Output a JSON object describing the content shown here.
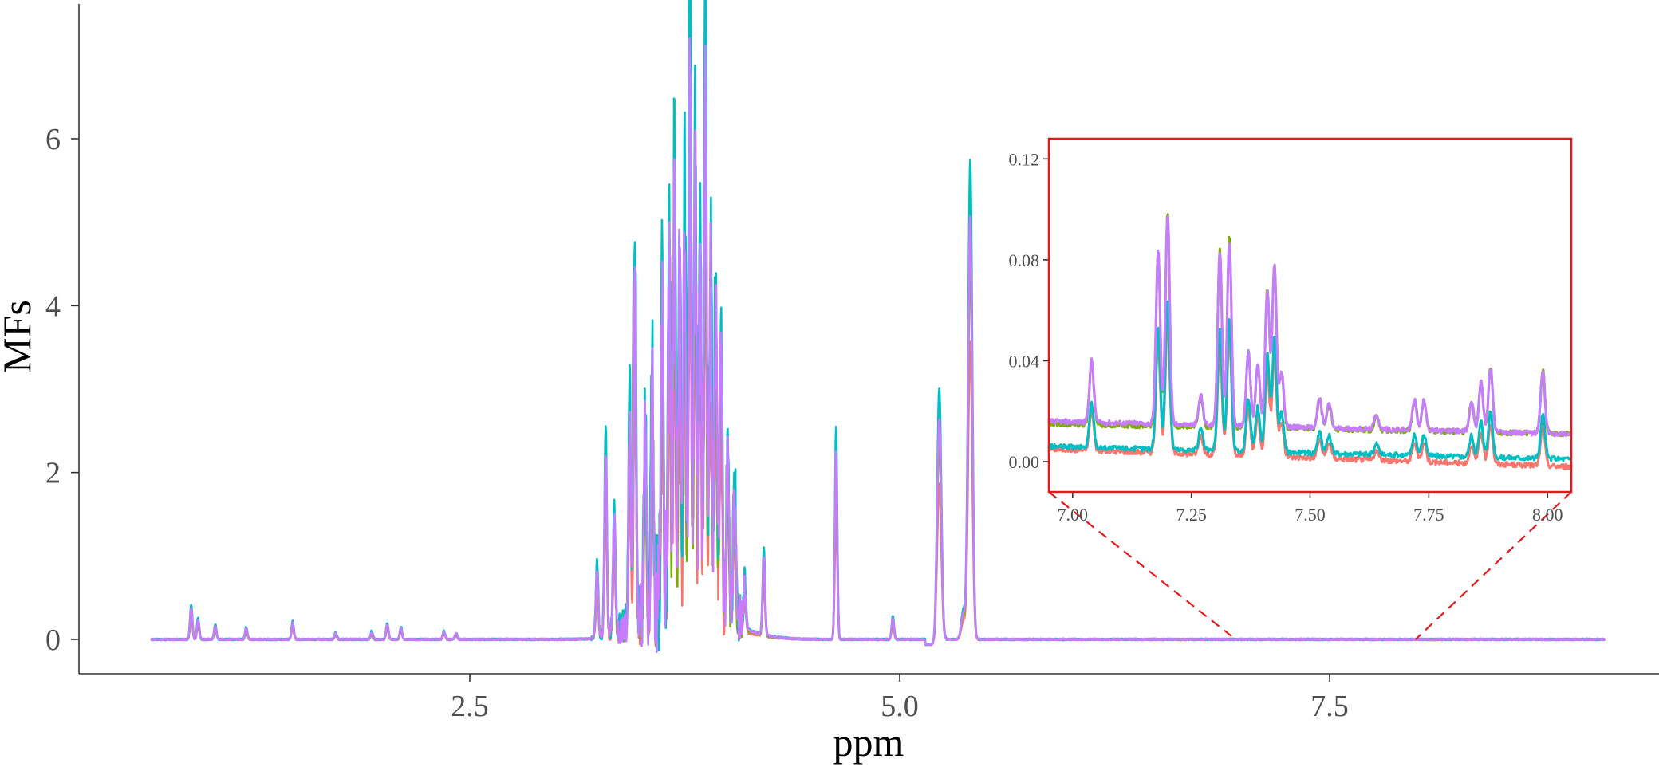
{
  "chart_data": {
    "type": "line",
    "xlabel": "ppm",
    "ylabel": "MFs",
    "xlim": [
      0.65,
      9.1
    ],
    "ylim": [
      -0.4,
      7.5
    ],
    "xticks": [
      {
        "value": 2.5,
        "label": "2.5"
      },
      {
        "value": 5.0,
        "label": "5.0"
      },
      {
        "value": 7.5,
        "label": "7.5"
      }
    ],
    "yticks": [
      {
        "value": 0,
        "label": "0"
      },
      {
        "value": 2,
        "label": "2"
      },
      {
        "value": 4,
        "label": "4"
      },
      {
        "value": 6,
        "label": "6"
      }
    ],
    "legend": "none",
    "grid": false,
    "series": [
      {
        "color": "#F8766D",
        "baseline": 0.0,
        "scale": 0.62
      },
      {
        "color": "#7CAE00",
        "baseline": 0.0,
        "scale": 0.8
      },
      {
        "color": "#00BFC4",
        "baseline": 0.0,
        "scale": 1.0
      },
      {
        "color": "#C77CFF",
        "baseline": 0.0,
        "scale": 0.88
      }
    ],
    "peaks": [
      {
        "x": 0.88,
        "h": 0.42
      },
      {
        "x": 0.92,
        "h": 0.26
      },
      {
        "x": 1.02,
        "h": 0.18
      },
      {
        "x": 1.2,
        "h": 0.15
      },
      {
        "x": 1.47,
        "h": 0.22
      },
      {
        "x": 1.72,
        "h": 0.08
      },
      {
        "x": 1.93,
        "h": 0.1
      },
      {
        "x": 2.02,
        "h": 0.2
      },
      {
        "x": 2.1,
        "h": 0.15
      },
      {
        "x": 2.35,
        "h": 0.1
      },
      {
        "x": 2.42,
        "h": 0.08
      },
      {
        "x": 3.24,
        "h": 0.92
      },
      {
        "x": 3.29,
        "h": 2.5
      },
      {
        "x": 3.34,
        "h": 1.6
      },
      {
        "x": 3.43,
        "h": 2.8
      },
      {
        "x": 3.46,
        "h": 4.85
      },
      {
        "x": 3.52,
        "h": 2.5
      },
      {
        "x": 3.56,
        "h": 3.2
      },
      {
        "x": 3.62,
        "h": 3.9
      },
      {
        "x": 3.66,
        "h": 4.6
      },
      {
        "x": 3.69,
        "h": 5.1
      },
      {
        "x": 3.72,
        "h": 4.2
      },
      {
        "x": 3.75,
        "h": 4.9
      },
      {
        "x": 3.78,
        "h": 7.2
      },
      {
        "x": 3.81,
        "h": 5.6
      },
      {
        "x": 3.84,
        "h": 4.4
      },
      {
        "x": 3.87,
        "h": 7.3
      },
      {
        "x": 3.9,
        "h": 4.6
      },
      {
        "x": 3.93,
        "h": 4.1
      },
      {
        "x": 3.96,
        "h": 3.8
      },
      {
        "x": 4.0,
        "h": 2.2
      },
      {
        "x": 4.04,
        "h": 1.8
      },
      {
        "x": 4.1,
        "h": 0.5
      },
      {
        "x": 4.21,
        "h": 1.05
      },
      {
        "x": 4.63,
        "h": 2.55
      },
      {
        "x": 4.96,
        "h": 0.28
      },
      {
        "x": 5.23,
        "h": 3.0
      },
      {
        "x": 5.37,
        "h": 0.35
      },
      {
        "x": 5.41,
        "h": 5.75
      }
    ],
    "inset": {
      "type": "line",
      "xlim": [
        6.95,
        8.05
      ],
      "ylim": [
        -0.012,
        0.128
      ],
      "xticks": [
        {
          "value": 7.0,
          "label": "7.00"
        },
        {
          "value": 7.25,
          "label": "7.25"
        },
        {
          "value": 7.5,
          "label": "7.50"
        },
        {
          "value": 7.75,
          "label": "7.75"
        },
        {
          "value": 8.0,
          "label": "8.00"
        }
      ],
      "yticks": [
        {
          "value": 0.0,
          "label": "0.00"
        },
        {
          "value": 0.04,
          "label": "0.04"
        },
        {
          "value": 0.08,
          "label": "0.08"
        },
        {
          "value": 0.12,
          "label": "0.12"
        }
      ],
      "zoom_range_ppm": [
        7.0,
        8.0
      ],
      "frame_color": "#E41A1C",
      "series": [
        {
          "color": "#F8766D",
          "baseline": 0.005,
          "drift": -0.007,
          "scale": 0.62
        },
        {
          "color": "#7CAE00",
          "baseline": 0.015,
          "drift": -0.004,
          "scale": 1.0
        },
        {
          "color": "#00BFC4",
          "baseline": 0.006,
          "drift": -0.005,
          "scale": 0.7
        },
        {
          "color": "#C77CFF",
          "baseline": 0.016,
          "drift": -0.005,
          "scale": 0.98
        }
      ],
      "peaks": [
        {
          "x": 7.04,
          "h": 0.025
        },
        {
          "x": 7.18,
          "h": 0.07
        },
        {
          "x": 7.2,
          "h": 0.085
        },
        {
          "x": 7.27,
          "h": 0.012
        },
        {
          "x": 7.31,
          "h": 0.07
        },
        {
          "x": 7.33,
          "h": 0.075
        },
        {
          "x": 7.37,
          "h": 0.03
        },
        {
          "x": 7.39,
          "h": 0.025
        },
        {
          "x": 7.41,
          "h": 0.055
        },
        {
          "x": 7.425,
          "h": 0.065
        },
        {
          "x": 7.44,
          "h": 0.022
        },
        {
          "x": 7.52,
          "h": 0.012
        },
        {
          "x": 7.54,
          "h": 0.01
        },
        {
          "x": 7.64,
          "h": 0.006
        },
        {
          "x": 7.72,
          "h": 0.012
        },
        {
          "x": 7.74,
          "h": 0.012
        },
        {
          "x": 7.84,
          "h": 0.012
        },
        {
          "x": 7.86,
          "h": 0.02
        },
        {
          "x": 7.88,
          "h": 0.026
        },
        {
          "x": 7.99,
          "h": 0.025
        }
      ]
    }
  }
}
